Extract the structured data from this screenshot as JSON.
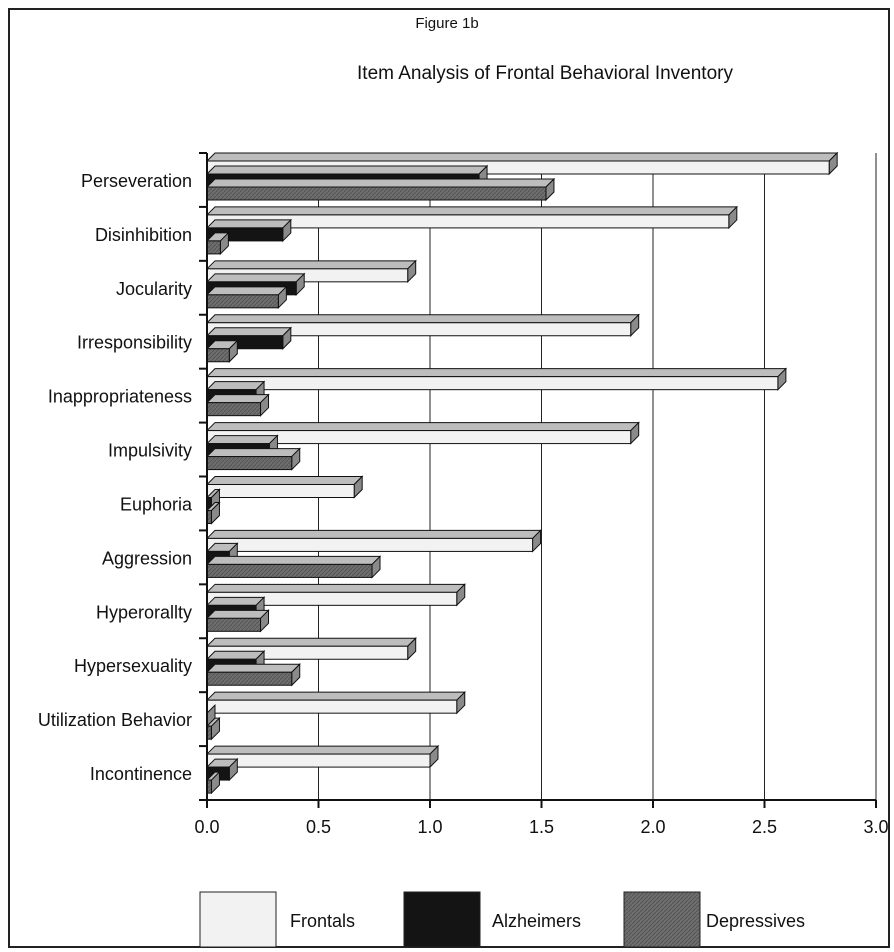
{
  "figure_label": "Figure 1b",
  "chart_data": {
    "type": "bar",
    "orientation": "horizontal",
    "title": "Item Analysis of Frontal Behavioral Inventory",
    "xlabel": "",
    "ylabel": "",
    "xlim": [
      0,
      3.0
    ],
    "x_ticks": [
      "0.0",
      "0.5",
      "1.0",
      "1.5",
      "2.0",
      "2.5",
      "3.0"
    ],
    "grid": "vertical",
    "legend_position": "bottom",
    "categories": [
      "Perseveration",
      "Disinhibition",
      "Jocularity",
      "Irresponsibility",
      "Inappropriateness",
      "Impulsivity",
      "Euphoria",
      "Aggression",
      "Hyperorallty",
      "Hypersexuality",
      "Utilization Behavior",
      "Incontinence"
    ],
    "series": [
      {
        "name": "Frontals",
        "color": "#f2f2f2",
        "values": [
          2.79,
          2.34,
          0.9,
          1.9,
          2.56,
          1.9,
          0.66,
          1.46,
          1.12,
          0.9,
          1.12,
          1.0
        ]
      },
      {
        "name": "Alzheimers",
        "color": "#141414",
        "values": [
          1.22,
          0.34,
          0.4,
          0.34,
          0.22,
          0.28,
          0.02,
          0.1,
          0.22,
          0.22,
          0.0,
          0.1
        ]
      },
      {
        "name": "Depressives",
        "color": "#6e6e6e",
        "values": [
          1.52,
          0.06,
          0.32,
          0.1,
          0.24,
          0.38,
          0.02,
          0.74,
          0.24,
          0.38,
          0.02,
          0.02
        ]
      }
    ]
  }
}
